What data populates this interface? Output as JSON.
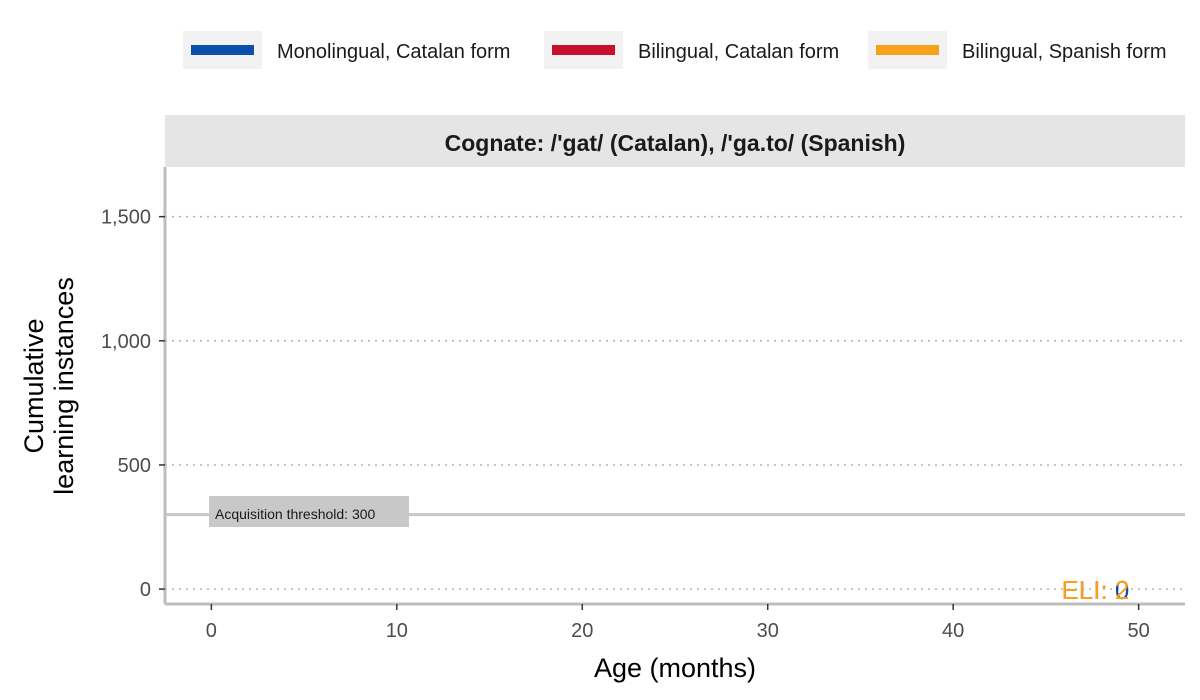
{
  "chart_data": {
    "type": "line",
    "title": "Cognate: /'gat/ (Catalan), /'ga.to/ (Spanish)",
    "xlabel": "Age (months)",
    "ylabel_lines": [
      "Cumulative",
      "learning instances"
    ],
    "xlim": [
      -2.5,
      52.5
    ],
    "ylim": [
      -60,
      1700
    ],
    "x_ticks": [
      0,
      10,
      20,
      30,
      40,
      50
    ],
    "x_tick_labels": [
      "0",
      "10",
      "20",
      "30",
      "40",
      "50"
    ],
    "y_ticks": [
      0,
      500,
      1000,
      1500
    ],
    "y_tick_labels": [
      "0",
      "500",
      "1,000",
      "1,500"
    ],
    "grid": "horizontal-dotted",
    "legend_position": "top",
    "series": [
      {
        "name": "Monolingual, Catalan form",
        "color": "#0b4fad",
        "x": [],
        "y": []
      },
      {
        "name": "Bilingual, Catalan form",
        "color": "#c8102e",
        "x": [],
        "y": []
      },
      {
        "name": "Bilingual, Spanish form",
        "color": "#f7a11a",
        "x": [],
        "y": []
      }
    ],
    "threshold": {
      "value": 300,
      "label": "Acquisition threshold: 300",
      "color": "#c8c8c8"
    },
    "eli_labels": [
      {
        "text": "ELI: 0",
        "color": "#0b4fad",
        "x": 49.5
      },
      {
        "text": "ELI: 2",
        "color": "#f7a11a",
        "x": 49.5
      }
    ]
  }
}
